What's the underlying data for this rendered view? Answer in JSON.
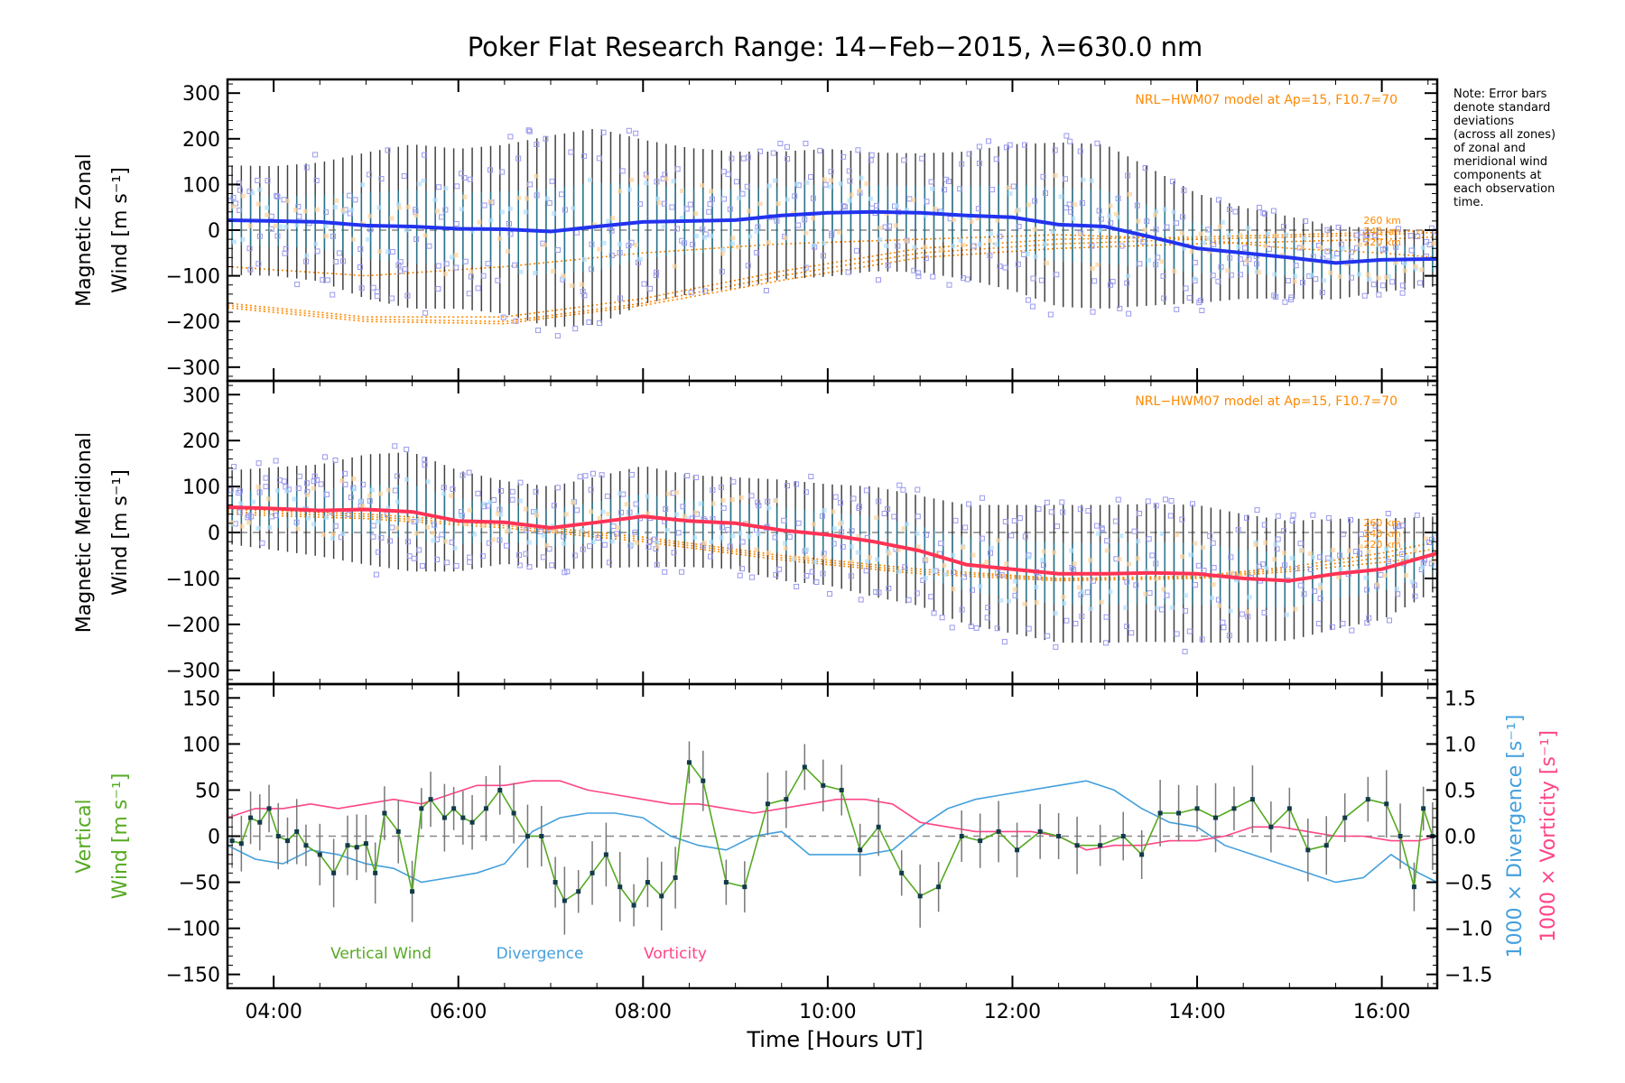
{
  "colors": {
    "zonal": "#2233ee",
    "meridional": "#ff3355",
    "vertical": "#55aa22",
    "divergence": "#44a0dd",
    "vorticity": "#ff4488",
    "model": "#ff8800",
    "scatter": "#9999ee",
    "errorbar": "#222222"
  },
  "chart_data": {
    "type": "line",
    "title": "Poker Flat Research Range: 14−Feb−2015, λ=630.0 nm",
    "xlabel": "Time [Hours UT]",
    "xlim": [
      3.5,
      16.6
    ],
    "xticks": [
      4,
      6,
      8,
      10,
      12,
      14,
      16
    ],
    "xtick_labels": [
      "04:00",
      "06:00",
      "08:00",
      "10:00",
      "12:00",
      "14:00",
      "16:00"
    ],
    "note": [
      "Note: Error bars",
      "denote standard",
      "deviations",
      "(across all zones)",
      "of zonal and",
      "meridional wind",
      "components at",
      "each observation",
      "time."
    ],
    "panels": [
      {
        "id": "zonal",
        "ylabel_line1": "Magnetic Zonal",
        "ylabel_line2": "Wind [m s⁻¹]",
        "ylim": [
          -330,
          330
        ],
        "yticks": [
          -300,
          -200,
          -100,
          0,
          100,
          200,
          300
        ],
        "ytick_labels": [
          "−300",
          "−200",
          "−100",
          "0",
          "100",
          "200",
          "300"
        ],
        "model_label": "NRL−HWM07 model at Ap=15, F10.7=70",
        "altitude_labels": [
          "260 km",
          "240 km",
          "220 km"
        ],
        "series": {
          "x": [
            3.5,
            4.0,
            4.5,
            5.0,
            5.5,
            6.0,
            6.5,
            7.0,
            7.5,
            8.0,
            8.5,
            9.0,
            9.5,
            10.0,
            10.5,
            11.0,
            11.5,
            12.0,
            12.5,
            13.0,
            13.5,
            14.0,
            14.5,
            15.0,
            15.5,
            16.0,
            16.6
          ],
          "y": [
            22,
            20,
            18,
            10,
            8,
            3,
            2,
            -3,
            8,
            18,
            20,
            22,
            32,
            38,
            40,
            38,
            32,
            28,
            12,
            8,
            -15,
            -40,
            -50,
            -60,
            -72,
            -65,
            -63
          ]
        },
        "spread": [
          120,
          120,
          130,
          160,
          180,
          175,
          185,
          210,
          215,
          180,
          160,
          150,
          140,
          140,
          130,
          130,
          140,
          160,
          180,
          180,
          150,
          120,
          100,
          90,
          80,
          70,
          60
        ],
        "model": [
          {
            "name": "260 km",
            "x": [
              3.5,
              5.0,
              6.5,
              8.0,
              9.5,
              11.0,
              12.5,
              14.0,
              15.0,
              16.0,
              16.6
            ],
            "y": [
              -160,
              -190,
              -190,
              -150,
              -90,
              -40,
              -20,
              -15,
              -10,
              -5,
              0
            ]
          },
          {
            "name": "240 km",
            "x": [
              3.5,
              5.0,
              6.5,
              8.0,
              9.5,
              11.0,
              12.5,
              14.0,
              15.0,
              16.0,
              16.6
            ],
            "y": [
              -165,
              -195,
              -200,
              -160,
              -100,
              -50,
              -30,
              -20,
              -15,
              -10,
              -5
            ]
          },
          {
            "name": "220 km",
            "x": [
              3.5,
              5.0,
              6.5,
              8.0,
              9.5,
              11.0,
              12.5,
              14.0,
              15.0,
              16.0,
              16.6
            ],
            "y": [
              -170,
              -200,
              -205,
              -165,
              -110,
              -60,
              -40,
              -30,
              -25,
              -20,
              -15
            ]
          },
          {
            "name": "",
            "x": [
              3.5,
              5.0,
              6.5,
              8.0,
              9.5,
              11.0,
              12.5,
              14.0,
              15.0,
              16.0,
              16.6
            ],
            "y": [
              -80,
              -100,
              -80,
              -50,
              -30,
              -20,
              -10,
              -20,
              -40,
              -50,
              -60
            ]
          }
        ]
      },
      {
        "id": "meridional",
        "ylabel_line1": "Magnetic Meridional",
        "ylabel_line2": "Wind [m s⁻¹]",
        "ylim": [
          -330,
          330
        ],
        "yticks": [
          -300,
          -200,
          -100,
          0,
          100,
          200,
          300
        ],
        "ytick_labels": [
          "−300",
          "−200",
          "−100",
          "0",
          "100",
          "200",
          "300"
        ],
        "model_label": "NRL−HWM07 model at Ap=15, F10.7=70",
        "altitude_labels": [
          "260 km",
          "240 km",
          "220 km"
        ],
        "series": {
          "x": [
            3.5,
            4.0,
            4.5,
            5.0,
            5.5,
            6.0,
            6.5,
            7.0,
            7.5,
            8.0,
            8.5,
            9.0,
            9.5,
            10.0,
            10.5,
            11.0,
            11.5,
            12.0,
            12.5,
            13.0,
            13.5,
            14.0,
            14.5,
            15.0,
            15.5,
            16.0,
            16.6
          ],
          "y": [
            55,
            52,
            48,
            50,
            45,
            25,
            22,
            10,
            22,
            35,
            25,
            20,
            5,
            -5,
            -20,
            -40,
            -70,
            -80,
            -90,
            -90,
            -88,
            -90,
            -100,
            -105,
            -90,
            -80,
            -45
          ]
        },
        "spread": [
          80,
          90,
          100,
          120,
          130,
          110,
          90,
          90,
          100,
          110,
          100,
          100,
          110,
          110,
          120,
          120,
          130,
          140,
          150,
          150,
          150,
          150,
          140,
          130,
          120,
          110,
          80
        ],
        "model": [
          {
            "name": "260 km",
            "x": [
              3.5,
              5.0,
              6.5,
              8.0,
              9.5,
              11.0,
              12.5,
              14.0,
              15.0,
              16.0,
              16.6
            ],
            "y": [
              50,
              40,
              20,
              -10,
              -50,
              -80,
              -100,
              -95,
              -75,
              -45,
              -20
            ]
          },
          {
            "name": "240 km",
            "x": [
              3.5,
              5.0,
              6.5,
              8.0,
              9.5,
              11.0,
              12.5,
              14.0,
              15.0,
              16.0,
              16.6
            ],
            "y": [
              45,
              35,
              15,
              -15,
              -55,
              -85,
              -102,
              -98,
              -80,
              -55,
              -35
            ]
          },
          {
            "name": "220 km",
            "x": [
              3.5,
              5.0,
              6.5,
              8.0,
              9.5,
              11.0,
              12.5,
              14.0,
              15.0,
              16.0,
              16.6
            ],
            "y": [
              40,
              30,
              10,
              -20,
              -60,
              -90,
              -105,
              -100,
              -85,
              -65,
              -50
            ]
          }
        ]
      },
      {
        "id": "vertical",
        "ylabel_line1": "Vertical",
        "ylabel_line2": "Wind [m s⁻¹]",
        "ylim": [
          -165,
          165
        ],
        "yticks": [
          -150,
          -100,
          -50,
          0,
          50,
          100,
          150
        ],
        "ytick_labels": [
          "−150",
          "−100",
          "−50",
          "0",
          "50",
          "100",
          "150"
        ],
        "right_ylabel_div": "1000 × Divergence [s⁻¹]",
        "right_ylabel_vort": "1000 × Vorticity [s⁻¹]",
        "right_ylim": [
          -1.65,
          1.65
        ],
        "right_yticks": [
          -1.5,
          -1.0,
          -0.5,
          0.0,
          0.5,
          1.0,
          1.5
        ],
        "right_ytick_labels": [
          "−1.5",
          "−1.0",
          "−0.5",
          "0.0",
          "0.5",
          "1.0",
          "1.5"
        ],
        "legend": [
          "Vertical Wind",
          "Divergence",
          "Vorticity"
        ],
        "vertical_wind": {
          "x": [
            3.55,
            3.65,
            3.75,
            3.85,
            3.95,
            4.05,
            4.15,
            4.25,
            4.35,
            4.5,
            4.65,
            4.8,
            4.9,
            5.0,
            5.1,
            5.2,
            5.35,
            5.5,
            5.6,
            5.7,
            5.85,
            5.95,
            6.05,
            6.15,
            6.3,
            6.45,
            6.6,
            6.75,
            6.9,
            7.05,
            7.15,
            7.3,
            7.45,
            7.6,
            7.75,
            7.9,
            8.05,
            8.2,
            8.35,
            8.5,
            8.65,
            8.9,
            9.1,
            9.35,
            9.55,
            9.75,
            9.95,
            10.15,
            10.35,
            10.55,
            10.8,
            11.0,
            11.2,
            11.45,
            11.65,
            11.85,
            12.05,
            12.3,
            12.5,
            12.7,
            12.95,
            13.2,
            13.4,
            13.6,
            13.8,
            14.0,
            14.2,
            14.4,
            14.6,
            14.8,
            15.0,
            15.2,
            15.4,
            15.6,
            15.85,
            16.05,
            16.2,
            16.35,
            16.45,
            16.55
          ],
          "y": [
            -5,
            -8,
            20,
            15,
            30,
            0,
            -5,
            5,
            -10,
            -20,
            -40,
            -10,
            -12,
            -8,
            -40,
            25,
            5,
            -60,
            30,
            40,
            20,
            30,
            20,
            15,
            30,
            50,
            25,
            0,
            0,
            -50,
            -70,
            -60,
            -40,
            -20,
            -55,
            -75,
            -50,
            -65,
            -45,
            80,
            60,
            -50,
            -55,
            35,
            40,
            75,
            55,
            50,
            -15,
            10,
            -40,
            -65,
            -55,
            0,
            -5,
            5,
            -15,
            5,
            0,
            -10,
            -10,
            0,
            -20,
            25,
            25,
            30,
            20,
            30,
            40,
            10,
            30,
            -15,
            -10,
            20,
            40,
            35,
            0,
            -55,
            30,
            0
          ]
        },
        "divergence": {
          "x": [
            3.5,
            3.8,
            4.1,
            4.4,
            4.7,
            5.0,
            5.3,
            5.6,
            5.9,
            6.2,
            6.5,
            6.8,
            7.1,
            7.4,
            7.7,
            8.0,
            8.3,
            8.6,
            8.9,
            9.2,
            9.5,
            9.8,
            10.1,
            10.4,
            10.7,
            11.0,
            11.3,
            11.6,
            11.9,
            12.2,
            12.5,
            12.8,
            13.1,
            13.4,
            13.7,
            14.0,
            14.3,
            14.6,
            14.9,
            15.2,
            15.5,
            15.8,
            16.1,
            16.4,
            16.6
          ],
          "y": [
            -0.1,
            -0.25,
            -0.3,
            -0.15,
            -0.2,
            -0.3,
            -0.35,
            -0.5,
            -0.45,
            -0.4,
            -0.3,
            0.05,
            0.2,
            0.25,
            0.25,
            0.2,
            0.0,
            -0.1,
            -0.15,
            0.0,
            0.05,
            -0.2,
            -0.2,
            -0.2,
            -0.15,
            0.1,
            0.3,
            0.4,
            0.45,
            0.5,
            0.55,
            0.6,
            0.5,
            0.3,
            0.15,
            0.1,
            -0.1,
            -0.2,
            -0.3,
            -0.4,
            -0.5,
            -0.45,
            -0.2,
            -0.4,
            -0.5
          ]
        },
        "vorticity": {
          "x": [
            3.5,
            3.8,
            4.1,
            4.4,
            4.7,
            5.0,
            5.3,
            5.6,
            5.9,
            6.2,
            6.5,
            6.8,
            7.1,
            7.4,
            7.7,
            8.0,
            8.3,
            8.6,
            8.9,
            9.2,
            9.5,
            9.8,
            10.1,
            10.4,
            10.7,
            11.0,
            11.3,
            11.6,
            11.9,
            12.2,
            12.5,
            12.8,
            13.1,
            13.4,
            13.7,
            14.0,
            14.3,
            14.6,
            14.9,
            15.2,
            15.5,
            15.8,
            16.1,
            16.4,
            16.6
          ],
          "y": [
            0.2,
            0.3,
            0.3,
            0.35,
            0.3,
            0.35,
            0.4,
            0.35,
            0.45,
            0.55,
            0.55,
            0.6,
            0.6,
            0.5,
            0.45,
            0.4,
            0.35,
            0.35,
            0.3,
            0.25,
            0.3,
            0.35,
            0.4,
            0.4,
            0.35,
            0.15,
            0.1,
            0.05,
            0.05,
            0.05,
            0.0,
            -0.15,
            -0.1,
            -0.1,
            -0.05,
            -0.05,
            0.0,
            0.1,
            0.1,
            0.05,
            0.0,
            0.0,
            -0.05,
            -0.05,
            0.0
          ]
        }
      }
    ]
  }
}
